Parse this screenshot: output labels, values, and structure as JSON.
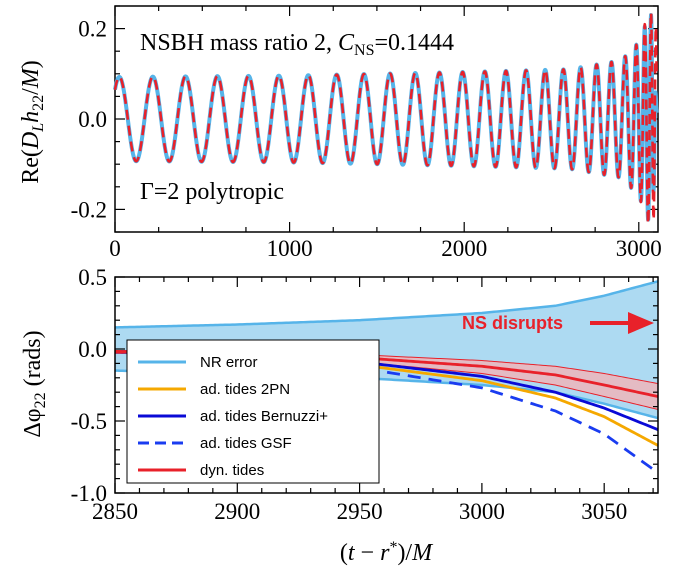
{
  "colors": {
    "nr": "#56b4e9",
    "nr_band": "#9fd4f0",
    "dyn_band": "#f7b0b3",
    "tides2pn": "#f5a800",
    "bernuzzi": "#0a0ad6",
    "gsf": "#1a3cf0",
    "dyn": "#e8212a"
  },
  "chart_data": [
    {
      "type": "line",
      "title": "NSBH mass ratio 2, C_NS=0.1444",
      "title_parts": {
        "main": "NSBH mass ratio 2, ",
        "sym": "C",
        "sub": "NS",
        "tail": "=0.1444"
      },
      "annotation": "Γ=2 polytropic",
      "ylabel": "Re(D_L h_22/M)",
      "ylabel_parts": {
        "a": "Re(",
        "b": "D",
        "c": "L",
        "d": "h",
        "e": "22",
        "f": "/",
        "g": "M",
        "h": ")"
      },
      "xlim": [
        0,
        3110
      ],
      "ylim": [
        -0.25,
        0.25
      ],
      "xticks": [
        0,
        1000,
        2000,
        3000
      ],
      "xtick_labels": [
        "0",
        "1000",
        "2000",
        "3000"
      ],
      "yticks": [
        0.2,
        0.0,
        -0.2
      ],
      "ytick_labels": [
        "0.2",
        "0.0",
        "-0.2"
      ],
      "series": [
        {
          "name": "NR",
          "color_key": "nr",
          "dash": "solid",
          "amplitude": [
            [
              0,
              0.093
            ],
            [
              1000,
              0.096
            ],
            [
              2000,
              0.104
            ],
            [
              2600,
              0.11
            ],
            [
              2900,
              0.13
            ],
            [
              3000,
              0.17
            ],
            [
              3060,
              0.23
            ],
            [
              3075,
              0.23
            ],
            [
              3090,
              0.12
            ],
            [
              3100,
              0.03
            ]
          ],
          "period": [
            [
              0,
              195
            ],
            [
              1000,
              170
            ],
            [
              2000,
              130
            ],
            [
              2600,
              100
            ],
            [
              2900,
              78
            ],
            [
              3000,
              52
            ],
            [
              3060,
              34
            ],
            [
              3100,
              24
            ]
          ]
        },
        {
          "name": "dyn. tides",
          "color_key": "dyn",
          "dash": "dashed",
          "amplitude": [
            [
              0,
              0.093
            ],
            [
              1000,
              0.096
            ],
            [
              2000,
              0.104
            ],
            [
              2600,
              0.11
            ],
            [
              2900,
              0.13
            ],
            [
              3000,
              0.17
            ],
            [
              3060,
              0.24
            ],
            [
              3080,
              0.23
            ],
            [
              3100,
              0.2
            ]
          ],
          "period": [
            [
              0,
              195
            ],
            [
              1000,
              170
            ],
            [
              2000,
              130
            ],
            [
              2600,
              100
            ],
            [
              2900,
              78
            ],
            [
              3000,
              52
            ],
            [
              3060,
              34
            ],
            [
              3100,
              24
            ]
          ]
        }
      ]
    },
    {
      "type": "line",
      "ylabel": "Δφ22 (rads)",
      "ylabel_parts": {
        "a": "Δφ",
        "b": "22",
        "c": " (rads)"
      },
      "xlabel": "(t − r*)/M",
      "xlabel_parts": {
        "a": "(",
        "b": "t",
        "c": " − ",
        "d": "r",
        "e": "*",
        "f": ")/",
        "g": "M"
      },
      "annotation": "NS disrupts",
      "xlim": [
        2850,
        3072
      ],
      "ylim": [
        -1.0,
        0.5
      ],
      "xticks": [
        2850,
        2900,
        2950,
        3000,
        3050
      ],
      "xtick_labels": [
        "2850",
        "2900",
        "2950",
        "3000",
        "3050"
      ],
      "yticks": [
        0.5,
        0.0,
        -0.5,
        -1.0
      ],
      "ytick_labels": [
        "0.5",
        "0.0",
        "-0.5",
        "-1.0"
      ],
      "legend_position": "lower-left",
      "legend": [
        {
          "label": "NR error",
          "color_key": "nr",
          "dash": "solid"
        },
        {
          "label": "ad. tides 2PN",
          "color_key": "tides2pn",
          "dash": "solid"
        },
        {
          "label": "ad. tides Bernuzzi+",
          "color_key": "bernuzzi",
          "dash": "solid"
        },
        {
          "label": "ad. tides GSF",
          "color_key": "gsf",
          "dash": "dashed"
        },
        {
          "label": "dyn. tides",
          "color_key": "dyn",
          "dash": "solid"
        }
      ],
      "bands": [
        {
          "name": "NR error",
          "color_key": "nr_band",
          "x": [
            2850,
            2900,
            2950,
            3000,
            3030,
            3050,
            3072
          ],
          "upper": [
            0.15,
            0.17,
            0.2,
            0.25,
            0.3,
            0.37,
            0.47
          ],
          "lower": [
            -0.15,
            -0.17,
            -0.2,
            -0.25,
            -0.3,
            -0.38,
            -0.48
          ]
        },
        {
          "name": "dyn. tides",
          "color_key": "dyn_band",
          "x": [
            2850,
            2900,
            2950,
            3000,
            3030,
            3050,
            3072
          ],
          "upper": [
            -0.01,
            -0.02,
            -0.04,
            -0.08,
            -0.12,
            -0.17,
            -0.24
          ],
          "lower": [
            -0.03,
            -0.05,
            -0.09,
            -0.17,
            -0.25,
            -0.33,
            -0.42
          ]
        }
      ],
      "series": [
        {
          "name": "ad. tides 2PN",
          "color_key": "tides2pn",
          "dash": "solid",
          "x": [
            2850,
            2900,
            2950,
            3000,
            3030,
            3050,
            3072
          ],
          "y": [
            -0.02,
            -0.05,
            -0.11,
            -0.22,
            -0.34,
            -0.47,
            -0.67
          ]
        },
        {
          "name": "ad. tides Bernuzzi+",
          "color_key": "bernuzzi",
          "dash": "solid",
          "x": [
            2850,
            2900,
            2950,
            3000,
            3030,
            3050,
            3072
          ],
          "y": [
            -0.02,
            -0.04,
            -0.09,
            -0.19,
            -0.3,
            -0.41,
            -0.56
          ]
        },
        {
          "name": "ad. tides GSF",
          "color_key": "gsf",
          "dash": "dashed",
          "x": [
            2850,
            2900,
            2950,
            3000,
            3030,
            3050,
            3072
          ],
          "y": [
            -0.02,
            -0.06,
            -0.13,
            -0.27,
            -0.43,
            -0.59,
            -0.86
          ]
        },
        {
          "name": "dyn. tides",
          "color_key": "dyn",
          "dash": "solid",
          "x": [
            2850,
            2900,
            2950,
            3000,
            3030,
            3050,
            3072
          ],
          "y": [
            -0.02,
            -0.03,
            -0.06,
            -0.12,
            -0.18,
            -0.25,
            -0.33
          ]
        }
      ]
    }
  ]
}
